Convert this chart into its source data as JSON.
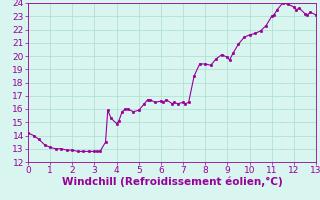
{
  "x": [
    0,
    0.25,
    0.5,
    0.75,
    1.0,
    1.25,
    1.5,
    1.75,
    2.0,
    2.25,
    2.5,
    2.75,
    3.0,
    3.1,
    3.25,
    3.5,
    3.6,
    3.75,
    4.0,
    4.1,
    4.25,
    4.4,
    4.5,
    4.75,
    5.0,
    5.25,
    5.4,
    5.5,
    5.75,
    6.0,
    6.1,
    6.25,
    6.5,
    6.6,
    6.75,
    7.0,
    7.1,
    7.25,
    7.5,
    7.75,
    8.0,
    8.25,
    8.5,
    8.75,
    9.0,
    9.1,
    9.25,
    9.5,
    9.75,
    10.0,
    10.25,
    10.5,
    10.75,
    11.0,
    11.1,
    11.25,
    11.5,
    11.75,
    12.0,
    12.1,
    12.25,
    12.5,
    12.6,
    12.75,
    13.0,
    13.1,
    13.25
  ],
  "y": [
    14.2,
    14.0,
    13.7,
    13.3,
    13.1,
    13.0,
    13.0,
    12.9,
    12.9,
    12.8,
    12.8,
    12.8,
    12.8,
    12.8,
    12.8,
    13.5,
    15.9,
    15.3,
    14.9,
    15.1,
    15.8,
    16.0,
    16.0,
    15.8,
    15.9,
    16.4,
    16.7,
    16.7,
    16.5,
    16.6,
    16.5,
    16.7,
    16.4,
    16.5,
    16.4,
    16.5,
    16.4,
    16.5,
    18.5,
    19.4,
    19.4,
    19.3,
    19.8,
    20.1,
    19.9,
    19.7,
    20.2,
    20.9,
    21.4,
    21.6,
    21.7,
    21.9,
    22.3,
    23.0,
    23.1,
    23.5,
    24.0,
    23.9,
    23.7,
    23.5,
    23.6,
    23.2,
    23.1,
    23.3,
    23.1,
    23.2,
    23.3
  ],
  "xlim": [
    0,
    13
  ],
  "ylim": [
    12,
    24
  ],
  "xticks": [
    0,
    1,
    2,
    3,
    4,
    5,
    6,
    7,
    8,
    9,
    10,
    11,
    12,
    13
  ],
  "yticks": [
    12,
    13,
    14,
    15,
    16,
    17,
    18,
    19,
    20,
    21,
    22,
    23,
    24
  ],
  "xlabel": "Windchill (Refroidissement éolien,°C)",
  "line_color": "#990099",
  "marker_color": "#990099",
  "bg_color": "#d8f5f0",
  "grid_color": "#aaddcc",
  "axis_color": "#990099",
  "tick_color": "#990099",
  "label_color": "#990099",
  "tick_fontsize": 6.5,
  "xlabel_fontsize": 7.5
}
